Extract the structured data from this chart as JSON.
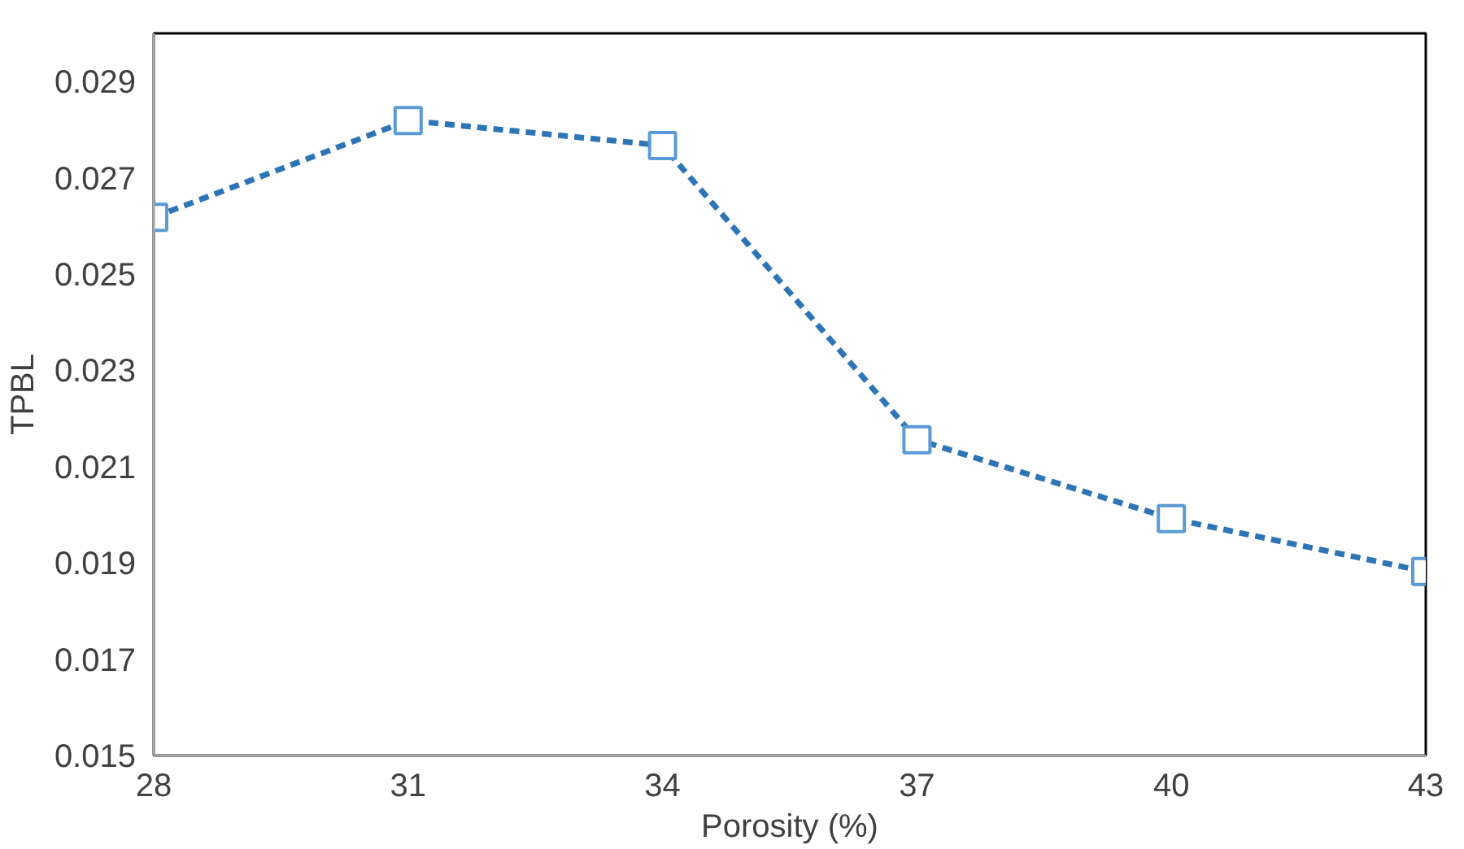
{
  "chart_data": {
    "type": "line",
    "xlabel": "Porosity (%)",
    "ylabel": "TPBL",
    "x": [
      28,
      31,
      34,
      37,
      40,
      43
    ],
    "series": [
      {
        "color": "#2e75b6",
        "values": [
          0.02618,
          0.02819,
          0.02767,
          0.02156,
          0.01992,
          0.01882
        ]
      }
    ],
    "xlim": [
      28,
      43
    ],
    "xticks": [
      28,
      31,
      34,
      37,
      40,
      43
    ],
    "ylim": [
      0.015,
      0.03
    ],
    "yticks": [
      0.015,
      0.017,
      0.019,
      0.021,
      0.023,
      0.025,
      0.027,
      0.029
    ],
    "grid": false,
    "marker": "square",
    "line_style": "dashed"
  }
}
